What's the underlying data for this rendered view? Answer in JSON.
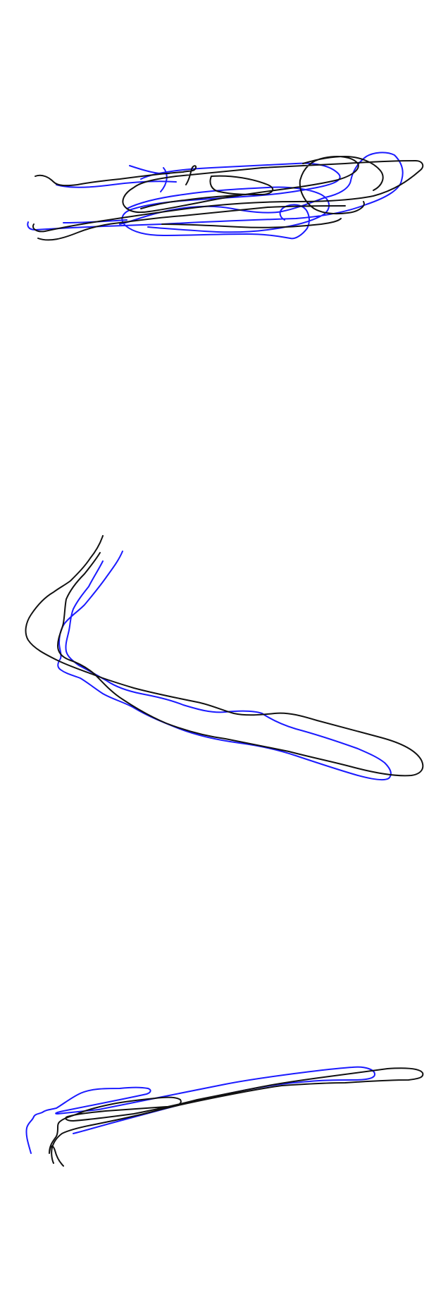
{
  "colors": {
    "background": "#ffffff",
    "reference_ink": "#111111",
    "attempt_ink": "#1a1aff"
  },
  "drawings": [
    {
      "name": "scribble-cluster",
      "strokes": [
        "reference",
        "attempt"
      ]
    },
    {
      "name": "bent-stroke",
      "strokes": [
        "reference",
        "attempt"
      ]
    },
    {
      "name": "long-diagonal-stroke",
      "strokes": [
        "reference",
        "attempt"
      ]
    }
  ]
}
